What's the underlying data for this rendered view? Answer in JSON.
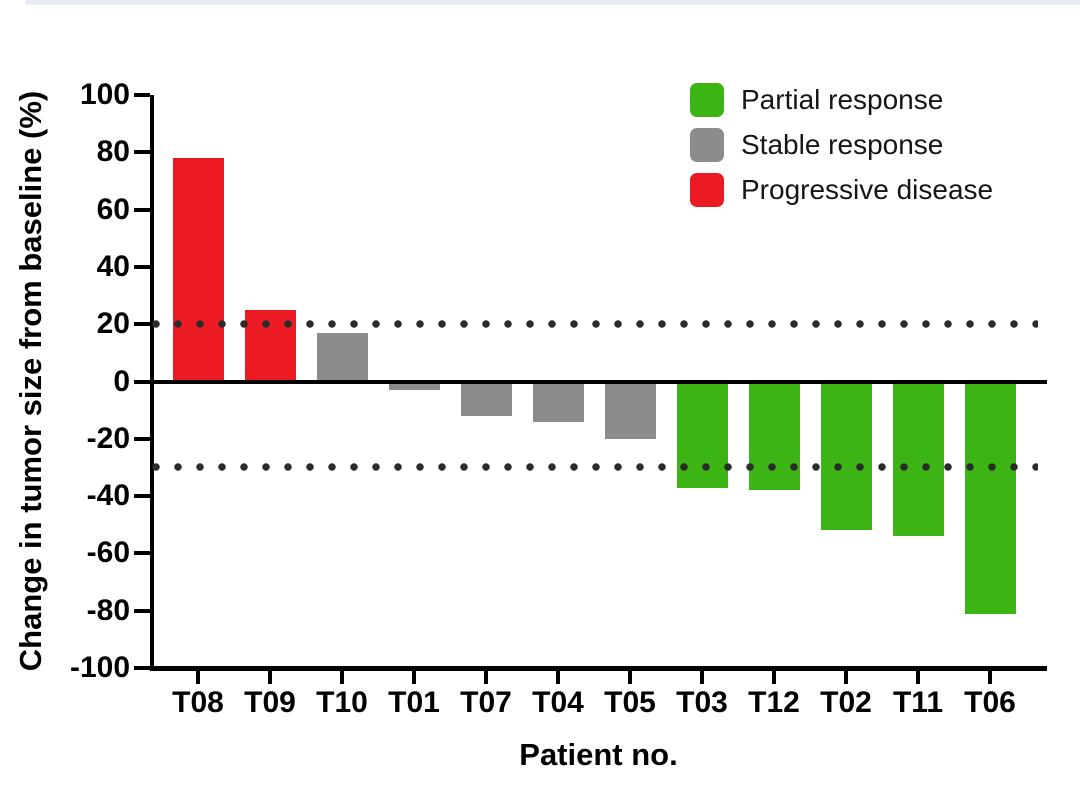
{
  "page": {
    "background_color": "#ffffff",
    "top_strip_color": "#e9ebf2"
  },
  "chart_data": {
    "type": "bar",
    "subtype": "waterfall",
    "title": "",
    "xlabel": "Patient no.",
    "ylabel": "Change in tumor size from baseline (%)",
    "ylim": [
      -100,
      100
    ],
    "ytick_step": 20,
    "grid": false,
    "legend_position": "top-right",
    "categories": [
      "T08",
      "T09",
      "T10",
      "T01",
      "T07",
      "T04",
      "T05",
      "T03",
      "T12",
      "T02",
      "T11",
      "T06"
    ],
    "values": [
      78,
      25,
      17,
      -3,
      -12,
      -14,
      -20,
      -37,
      -38,
      -52,
      -54,
      -81
    ],
    "groups": [
      "Progressive disease",
      "Progressive disease",
      "Stable response",
      "Stable response",
      "Stable response",
      "Stable response",
      "Stable response",
      "Partial response",
      "Partial response",
      "Partial response",
      "Partial response",
      "Partial response"
    ],
    "legend": [
      {
        "label": "Partial response",
        "color": "#3cb414"
      },
      {
        "label": "Stable response",
        "color": "#8c8c8c"
      },
      {
        "label": "Progressive disease",
        "color": "#ec1b23"
      }
    ],
    "reference_lines": [
      20,
      -30
    ],
    "reference_line_style": "dotted",
    "reference_dot_color": "#2b2b2b",
    "axis_color": "#000000"
  }
}
